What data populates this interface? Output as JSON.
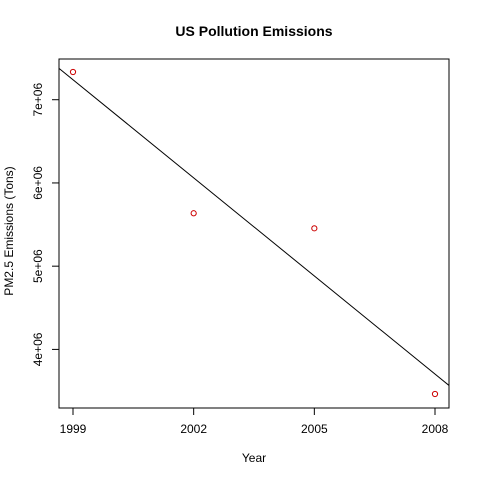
{
  "chart_data": {
    "type": "scatter",
    "title": "US Pollution Emissions",
    "xlabel": "Year",
    "ylabel": "PM2.5 Emissions (Tons)",
    "x": [
      1999,
      2002,
      2005,
      2008
    ],
    "y": [
      7332967,
      5635780,
      5454703,
      3464206
    ],
    "point_color": "#cc0000",
    "xlim": [
      1999,
      2008
    ],
    "ylim": [
      3464206,
      7332967
    ],
    "x_ticks": [
      1999,
      2002,
      2005,
      2008
    ],
    "x_tick_labels": [
      "1999",
      "2002",
      "2005",
      "2008"
    ],
    "y_ticks": [
      4000000,
      5000000,
      6000000,
      7000000
    ],
    "y_tick_labels": [
      "4e+06",
      "5e+06",
      "6e+06",
      "7e+06"
    ],
    "trend_line": {
      "type": "linear-fit",
      "color": "#000000"
    },
    "grid": false,
    "legend": "none"
  }
}
